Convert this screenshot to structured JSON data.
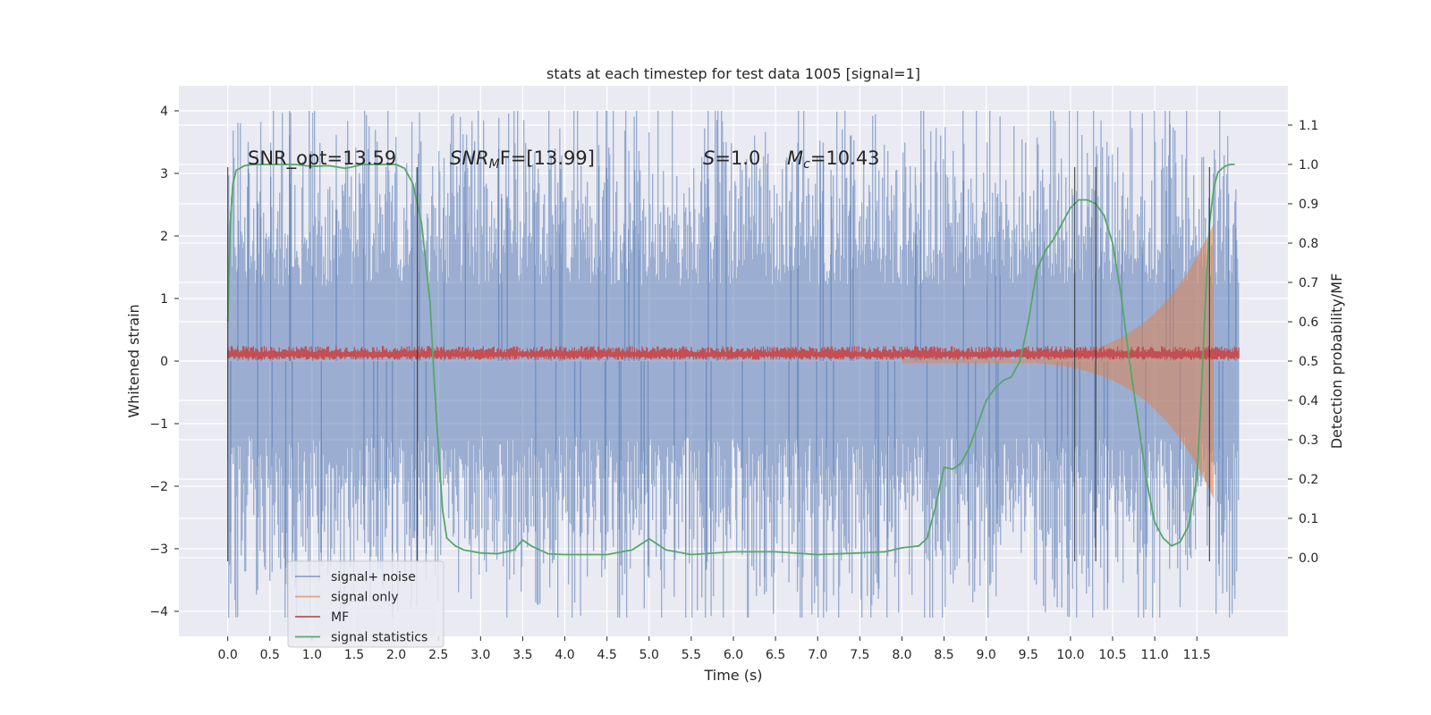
{
  "chart_data": {
    "type": "line",
    "title": "stats at each timestep for test data 1005 [signal=1]",
    "xlabel": "Time (s)",
    "ylabel": "Whitened strain",
    "ylabel_right": "Detection probability/MF",
    "xlim": [
      -0.58,
      12.58
    ],
    "ylim": [
      -4.4,
      4.4
    ],
    "ylim_right": [
      -0.2,
      1.2
    ],
    "xticks": [
      0.0,
      0.5,
      1.0,
      1.5,
      2.0,
      2.5,
      3.0,
      3.5,
      4.0,
      4.5,
      5.0,
      5.5,
      6.0,
      6.5,
      7.0,
      7.5,
      8.0,
      8.5,
      9.0,
      9.5,
      10.0,
      10.5,
      11.0,
      11.5
    ],
    "xtick_labels": [
      "0.0",
      "0.5",
      "1.0",
      "1.5",
      "2.0",
      "2.5",
      "3.0",
      "3.5",
      "4.0",
      "4.5",
      "5.0",
      "5.5",
      "6.0",
      "6.5",
      "7.0",
      "7.5",
      "8.0",
      "8.5",
      "9.0",
      "9.5",
      "10.0",
      "10.5",
      "11.0",
      "11.5"
    ],
    "yticks": [
      -4,
      -3,
      -2,
      -1,
      0,
      1,
      2,
      3,
      4
    ],
    "ytick_labels": [
      "−4",
      "−3",
      "−2",
      "−1",
      "0",
      "1",
      "2",
      "3",
      "4"
    ],
    "yticks_right": [
      0.0,
      0.1,
      0.2,
      0.3,
      0.4,
      0.5,
      0.6,
      0.7,
      0.8,
      0.9,
      1.0,
      1.1
    ],
    "ytick_right_labels": [
      "0.0",
      "0.1",
      "0.2",
      "0.3",
      "0.4",
      "0.5",
      "0.6",
      "0.7",
      "0.8",
      "0.9",
      "1.0",
      "1.1"
    ],
    "grid": true,
    "legend_position": "bottom-left",
    "annotations": {
      "snr_opt": "SNR_opt=13.59",
      "snr_mf_italic": "SNR",
      "snr_mf_sub": "M",
      "snr_mf_rest": "F=[13.99]",
      "s_italic": "S",
      "s_rest": "=1.0",
      "mc_italic": "M",
      "mc_sub": "c",
      "mc_rest": "=10.43"
    },
    "vertical_lines_x": [
      0.0,
      2.25,
      10.05,
      10.3,
      11.65
    ],
    "series": [
      {
        "name": "signal+ noise",
        "color": "#4c72b0",
        "kind": "noise_band",
        "x_range": [
          0.0,
          12.0
        ],
        "typical_min": -2.6,
        "typical_max": 2.6,
        "peak_min": -4.1,
        "peak_max": 4.0
      },
      {
        "name": "signal only",
        "color": "#dd8452",
        "kind": "chirp",
        "start_x": 8.0,
        "peak_x": 11.7,
        "peak_amplitude": 2.2
      },
      {
        "name": "MF",
        "color": "#c44e52",
        "kind": "baseline_band",
        "x_range": [
          0.0,
          12.0
        ],
        "low": 0.02,
        "high": 0.24
      },
      {
        "name": "signal statistics",
        "color": "#55a868",
        "axis": "right",
        "x": [
          0.0,
          0.03,
          0.06,
          0.1,
          0.2,
          0.3,
          0.5,
          0.8,
          1.0,
          1.2,
          1.4,
          1.6,
          1.8,
          2.0,
          2.1,
          2.2,
          2.3,
          2.4,
          2.45,
          2.5,
          2.55,
          2.6,
          2.7,
          2.8,
          3.0,
          3.2,
          3.4,
          3.5,
          3.6,
          3.8,
          4.0,
          4.5,
          4.8,
          5.0,
          5.2,
          5.5,
          6.0,
          6.5,
          7.0,
          7.5,
          7.8,
          8.0,
          8.2,
          8.3,
          8.4,
          8.5,
          8.6,
          8.7,
          8.8,
          8.9,
          9.0,
          9.1,
          9.2,
          9.3,
          9.4,
          9.5,
          9.6,
          9.7,
          9.8,
          9.9,
          10.0,
          10.1,
          10.2,
          10.3,
          10.4,
          10.5,
          10.6,
          10.7,
          10.8,
          10.9,
          11.0,
          11.1,
          11.2,
          11.3,
          11.4,
          11.5,
          11.55,
          11.6,
          11.65,
          11.7,
          11.75,
          11.8,
          11.85,
          11.9,
          11.95
        ],
        "y": [
          0.6,
          0.85,
          0.95,
          0.985,
          0.997,
          1.0,
          1.0,
          1.0,
          0.995,
          0.997,
          0.99,
          1.0,
          1.0,
          1.0,
          0.99,
          0.95,
          0.85,
          0.65,
          0.45,
          0.28,
          0.12,
          0.05,
          0.03,
          0.02,
          0.012,
          0.01,
          0.02,
          0.045,
          0.03,
          0.01,
          0.008,
          0.008,
          0.02,
          0.048,
          0.02,
          0.008,
          0.015,
          0.015,
          0.008,
          0.012,
          0.015,
          0.025,
          0.03,
          0.05,
          0.13,
          0.23,
          0.225,
          0.24,
          0.28,
          0.34,
          0.4,
          0.43,
          0.45,
          0.46,
          0.5,
          0.6,
          0.73,
          0.78,
          0.81,
          0.85,
          0.89,
          0.91,
          0.91,
          0.9,
          0.87,
          0.8,
          0.67,
          0.5,
          0.35,
          0.2,
          0.09,
          0.05,
          0.03,
          0.04,
          0.08,
          0.2,
          0.4,
          0.65,
          0.85,
          0.94,
          0.98,
          0.99,
          0.997,
          1.0,
          1.0
        ]
      }
    ]
  }
}
